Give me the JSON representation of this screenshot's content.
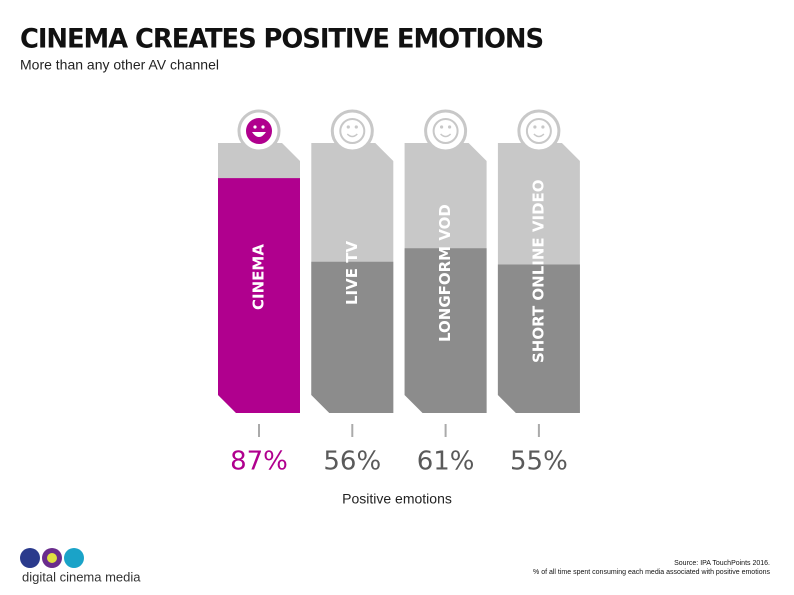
{
  "chart_data": {
    "type": "bar",
    "title": "CINEMA CREATES POSITIVE EMOTIONS",
    "subtitle": "More than any other AV channel",
    "categories": [
      "CINEMA",
      "LIVE TV",
      "LONGFORM VOD",
      "SHORT ONLINE VIDEO"
    ],
    "values": [
      87,
      56,
      61,
      55
    ],
    "value_labels": [
      "87%",
      "56%",
      "61%",
      "55%"
    ],
    "colors": [
      "#b0008e",
      "#8c8c8c",
      "#8c8c8c",
      "#8c8c8c"
    ],
    "label_colors": [
      "#b0008e",
      "#5a5a5a",
      "#5a5a5a",
      "#5a5a5a"
    ],
    "ylim": [
      0,
      100
    ],
    "x_label": "Positive emotions",
    "source": [
      "Source: IPA TouchPoints 2016.",
      "% of all time spent consuming each media associated with positive emotions"
    ],
    "logo": "digital cinema media"
  }
}
